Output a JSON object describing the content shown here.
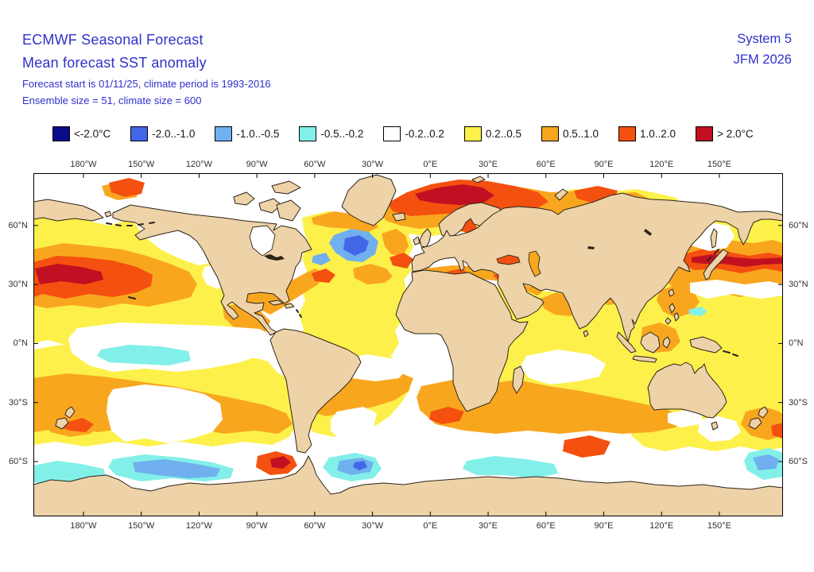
{
  "header": {
    "title_line1": "ECMWF Seasonal Forecast",
    "title_line2": "Mean forecast SST anomaly",
    "subtitle_line1": "Forecast start is 01/11/25, climate period is 1993-2016",
    "subtitle_line2": "Ensemble size = 51, climate size = 600",
    "system_label": "System 5",
    "season_label": "JFM 2026"
  },
  "legend": {
    "items": [
      {
        "label": "<-2.0°C",
        "color": "#0b0b8a"
      },
      {
        "label": "-2.0..-1.0",
        "color": "#4166e8"
      },
      {
        "label": "-1.0..-0.5",
        "color": "#70b0ee"
      },
      {
        "label": "-0.5..-0.2",
        "color": "#82f0e8"
      },
      {
        "label": "-0.2..0.2",
        "color": "#ffffff"
      },
      {
        "label": "0.2..0.5",
        "color": "#fdf04a"
      },
      {
        "label": "0.5..1.0",
        "color": "#f9a61f"
      },
      {
        "label": "1.0..2.0",
        "color": "#f4500f"
      },
      {
        "label": "> 2.0°C",
        "color": "#c11021"
      }
    ]
  },
  "map": {
    "lon_ticks": [
      "180°W",
      "150°W",
      "120°W",
      "90°W",
      "60°W",
      "30°W",
      "0°E",
      "30°E",
      "60°E",
      "90°E",
      "120°E",
      "150°E"
    ],
    "lat_ticks": [
      "60°N",
      "30°N",
      "0°N",
      "30°S",
      "60°S"
    ],
    "land_color": "#eed2a8",
    "coast_color": "#2b2418",
    "ocean_neutral_color": "#ffffff",
    "anomaly_regions": [
      {
        "region": "Central North Pacific",
        "anomaly": "> 2.0°C warm core"
      },
      {
        "region": "Northwest Pacific east of Japan",
        "anomaly": "> 2.0°C warm band"
      },
      {
        "region": "Norwegian / Barents Sea",
        "anomaly": "> 2.0°C warm patch"
      },
      {
        "region": "North Atlantic south of Greenland",
        "anomaly": "-2.0..-1.0 cold blob"
      },
      {
        "region": "Central equatorial Pacific",
        "anomaly": "-0.5..-0.2 weak cold"
      },
      {
        "region": "Southern Ocean fringe",
        "anomaly": "-1.0..-0.5 cold patches"
      },
      {
        "region": "Antarctic Peninsula seas",
        "anomaly": "1.0..2.0 warm spot"
      },
      {
        "region": "Southern mid-latitude belt",
        "anomaly": "0.5..1.0 warm band"
      }
    ]
  },
  "colors": {
    "title_text": "#3030cc",
    "axis_text": "#303030",
    "frame": "#000000"
  }
}
